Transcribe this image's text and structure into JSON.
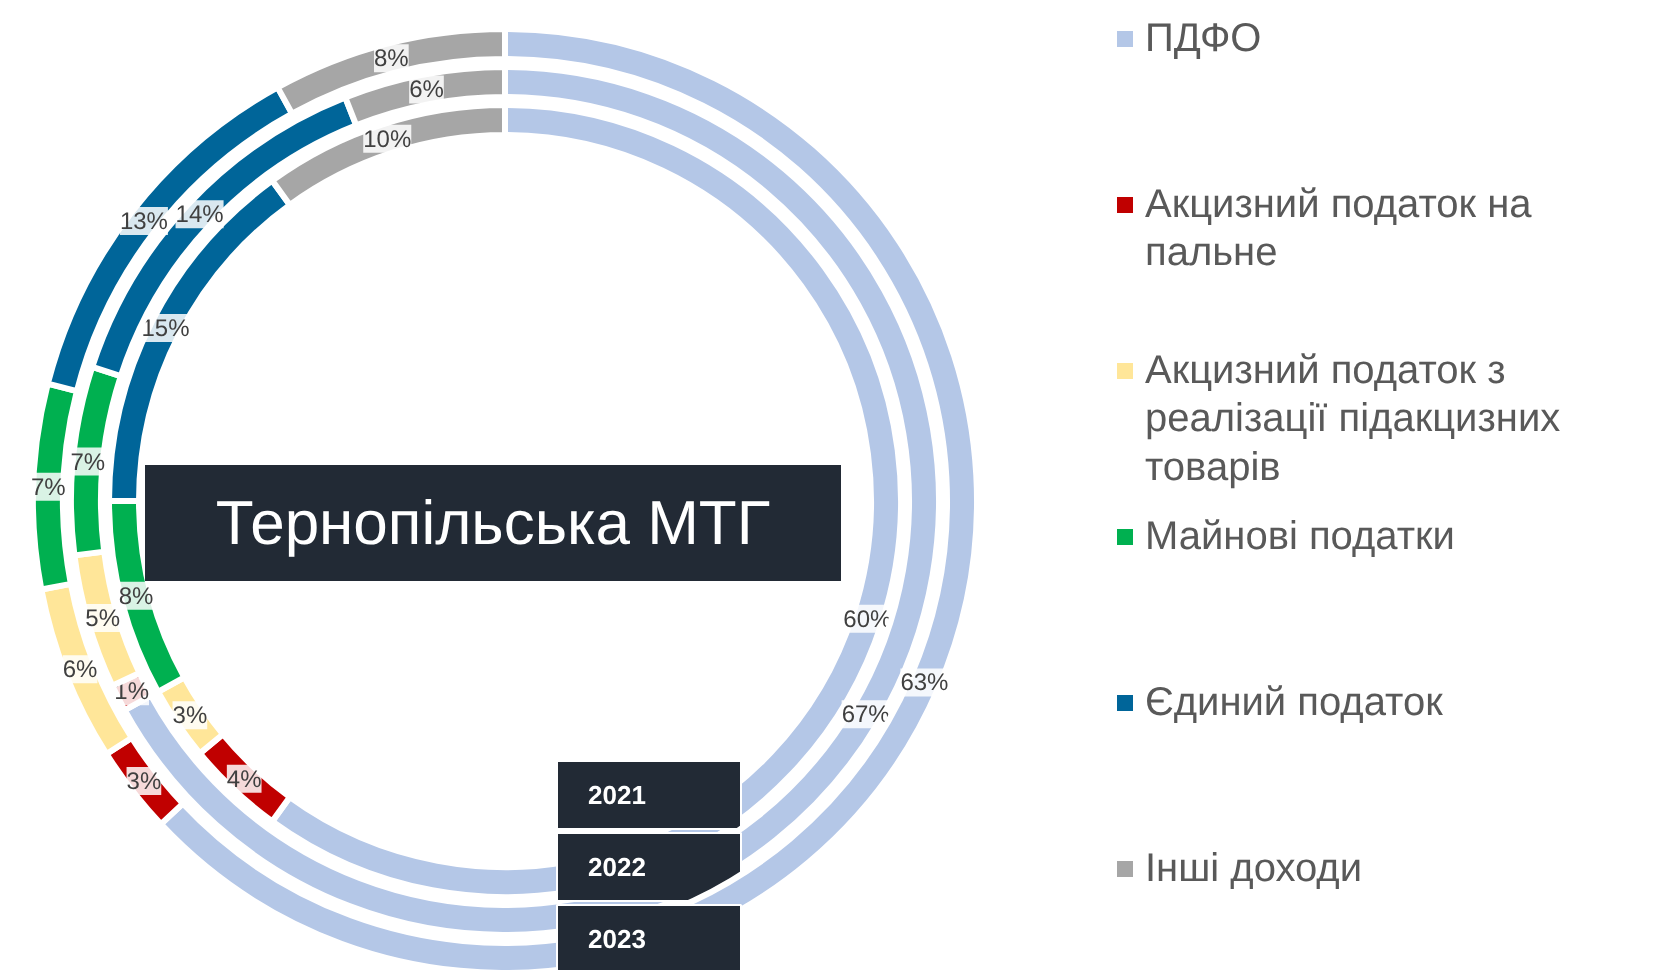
{
  "chart_data": {
    "type": "donut",
    "title": "Тернопільська МТГ",
    "categories": [
      "ПДФО",
      "Акцизний податок на пальне",
      "Акцизний податок з реалізації підакцизних товарів",
      "Майнові податки",
      "Єдиний податок",
      "Інші доходи"
    ],
    "colors": [
      "#b4c7e7",
      "#c00000",
      "#ffe699",
      "#00b050",
      "#006599",
      "#a6a6a6"
    ],
    "series": [
      {
        "name": "2021",
        "values": [
          60,
          4,
          3,
          8,
          15,
          10
        ],
        "value_labels": [
          "60%",
          "4%",
          "3%",
          "8%",
          "15%",
          "10%"
        ]
      },
      {
        "name": "2022",
        "values": [
          67,
          1,
          5,
          7,
          14,
          6
        ],
        "value_labels": [
          "67%",
          "1%",
          "5%",
          "7%",
          "14%",
          "6%"
        ]
      },
      {
        "name": "2023",
        "values": [
          63,
          3,
          6,
          7,
          13,
          8
        ],
        "value_labels": [
          "63%",
          "3%",
          "6%",
          "7%",
          "13%",
          "8%"
        ]
      }
    ],
    "legend": "right"
  }
}
